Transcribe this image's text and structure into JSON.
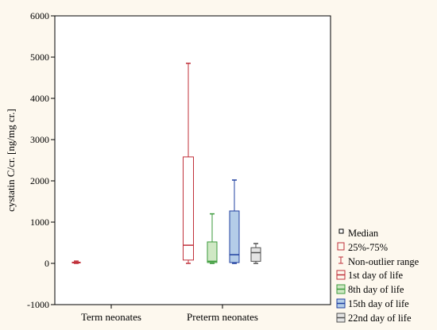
{
  "chart_data": {
    "type": "box",
    "ylabel": "cystatin C/cr. [ng/mg cr.]",
    "ylim": [
      -1000,
      6000
    ],
    "yticks": [
      -1000,
      0,
      1000,
      2000,
      3000,
      4000,
      5000,
      6000
    ],
    "groups": [
      "Term neonates",
      "Preterm neonates"
    ],
    "series": [
      {
        "name": "1st day of life",
        "group": "Term neonates",
        "color": "#c0303a",
        "fill": "none",
        "min": 0,
        "q1": 10,
        "median": 20,
        "q3": 30,
        "max": 55
      },
      {
        "name": "1st day of life",
        "group": "Preterm neonates",
        "color": "#c0303a",
        "fill": "none",
        "min": 0,
        "q1": 80,
        "median": 440,
        "q3": 2580,
        "max": 4850
      },
      {
        "name": "8th day of life",
        "group": "Preterm neonates",
        "color": "#3a9a3a",
        "fill": "#cfe8c4",
        "min": 0,
        "q1": 20,
        "median": 50,
        "q3": 520,
        "max": 1200
      },
      {
        "name": "15th day of life",
        "group": "Preterm neonates",
        "color": "#2040a0",
        "fill": "#b4cde8",
        "min": 0,
        "q1": 20,
        "median": 210,
        "q3": 1270,
        "max": 2020
      },
      {
        "name": "22nd day of life",
        "group": "Preterm neonates",
        "color": "#505050",
        "fill": "#e4e4e4",
        "min": 0,
        "q1": 50,
        "median": 260,
        "q3": 380,
        "max": 480
      }
    ],
    "legend": {
      "placement": "bottom-right",
      "symbols": [
        "Median",
        "25%-75%",
        "Non-outlier range"
      ],
      "entries": [
        {
          "label": "1st day of life",
          "color": "#c0303a",
          "fill": "#fdf8ee"
        },
        {
          "label": "8th day of life",
          "color": "#3a9a3a",
          "fill": "#cfe8c4"
        },
        {
          "label": "15th day of life",
          "color": "#2040a0",
          "fill": "#b4cde8"
        },
        {
          "label": "22nd day of life",
          "color": "#505050",
          "fill": "#e4e4e4"
        }
      ]
    }
  }
}
